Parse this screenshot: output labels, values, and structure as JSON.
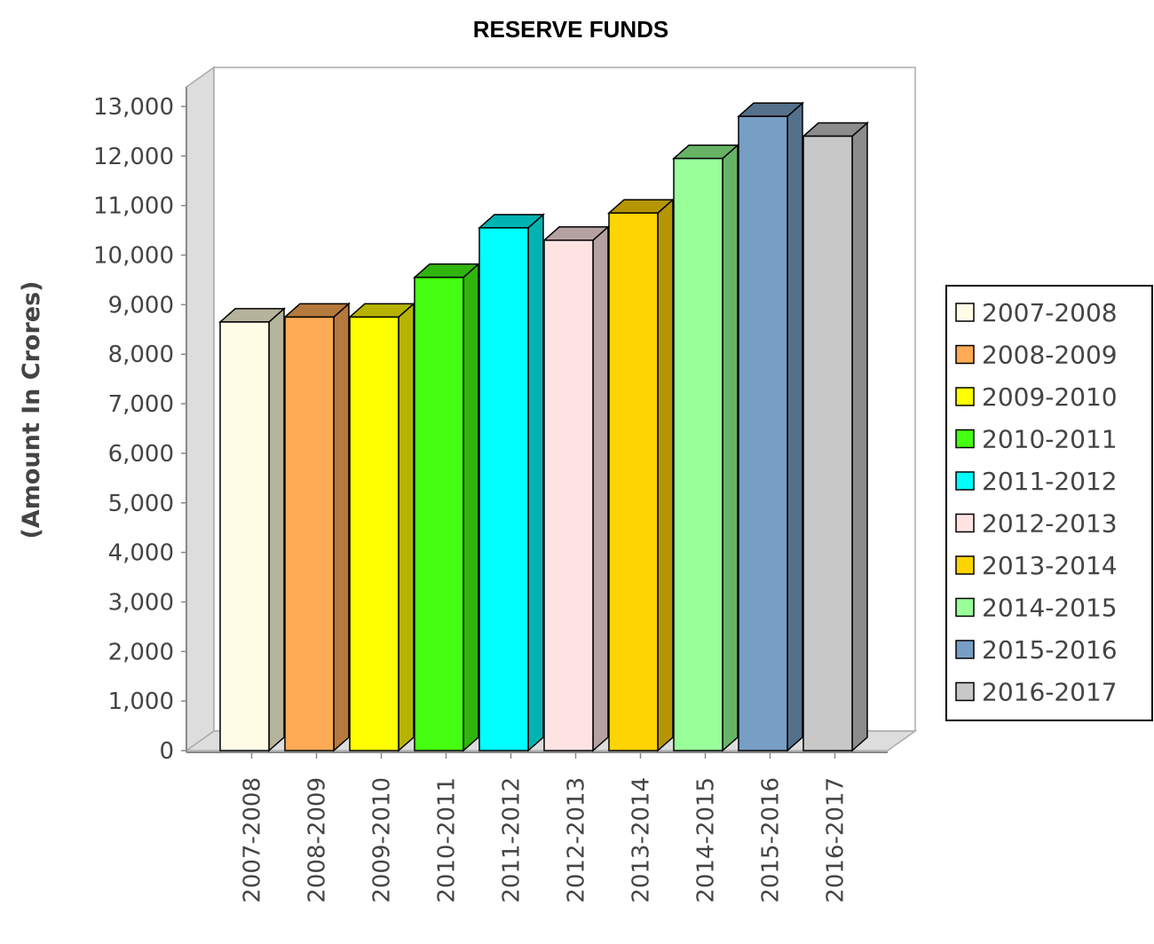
{
  "chart_data": {
    "type": "bar",
    "title": "RESERVE FUNDS",
    "xlabel": "",
    "ylabel": "(Amount In Crores)",
    "ylim": [
      0,
      13000
    ],
    "yticks": [
      0,
      1000,
      2000,
      3000,
      4000,
      5000,
      6000,
      7000,
      8000,
      9000,
      10000,
      11000,
      12000,
      13000
    ],
    "ytick_labels": [
      "0",
      "1,000",
      "2,000",
      "3,000",
      "4,000",
      "5,000",
      "6,000",
      "7,000",
      "8,000",
      "9,000",
      "10,000",
      "11,000",
      "12,000",
      "13,000"
    ],
    "grid": false,
    "legend_position": "right",
    "categories": [
      "2007-2008",
      "2008-2009",
      "2009-2010",
      "2010-2011",
      "2011-2012",
      "2012-2013",
      "2013-2014",
      "2014-2015",
      "2015-2016",
      "2016-2017"
    ],
    "values": [
      8650,
      8750,
      8750,
      9550,
      10550,
      10300,
      10850,
      11950,
      12800,
      12400
    ],
    "colors": [
      "#fffce6",
      "#ffaa55",
      "#ffff00",
      "#44ff11",
      "#00ffff",
      "#ffe3e3",
      "#ffd400",
      "#99ff99",
      "#779ec4",
      "#c8c8c8"
    ],
    "side_colors": [
      "#b6b39c",
      "#b5793d",
      "#b5b300",
      "#30b50c",
      "#00b3b3",
      "#b5a1a1",
      "#b59600",
      "#66b366",
      "#54708b",
      "#8c8c8c"
    ],
    "legend": [
      "2007-2008",
      "2008-2009",
      "2009-2010",
      "2010-2011",
      "2011-2012",
      "2012-2013",
      "2013-2014",
      "2014-2015",
      "2015-2016",
      "2016-2017"
    ]
  }
}
